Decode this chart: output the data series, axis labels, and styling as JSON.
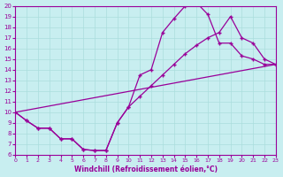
{
  "xlabel": "Windchill (Refroidissement éolien,°C)",
  "bg_color": "#c8eef0",
  "grid_color": "#aadddd",
  "line_color": "#990099",
  "xlim": [
    0,
    23
  ],
  "ylim": [
    6,
    20
  ],
  "xticks": [
    0,
    1,
    2,
    3,
    4,
    5,
    6,
    7,
    8,
    9,
    10,
    11,
    12,
    13,
    14,
    15,
    16,
    17,
    18,
    19,
    20,
    21,
    22,
    23
  ],
  "yticks": [
    6,
    7,
    8,
    9,
    10,
    11,
    12,
    13,
    14,
    15,
    16,
    17,
    18,
    19,
    20
  ],
  "line1_x": [
    0,
    1,
    2,
    3,
    4,
    5,
    6,
    7,
    8,
    9,
    10,
    11,
    12,
    13,
    14,
    15,
    16,
    17,
    18,
    19,
    20,
    21,
    22,
    23
  ],
  "line1_y": [
    10,
    9.2,
    8.5,
    8.5,
    7.5,
    7.5,
    6.5,
    6.4,
    6.4,
    9.0,
    10.5,
    13.5,
    14.0,
    17.5,
    18.8,
    20.0,
    20.3,
    19.2,
    16.5,
    16.5,
    15.3,
    15.0,
    14.5,
    14.5
  ],
  "line2_x": [
    0,
    1,
    2,
    3,
    4,
    5,
    6,
    7,
    8,
    9,
    10,
    11,
    12,
    13,
    14,
    15,
    16,
    17,
    18,
    19,
    20,
    21,
    22,
    23
  ],
  "line2_y": [
    10,
    9.2,
    8.5,
    8.5,
    7.5,
    7.5,
    6.5,
    6.4,
    6.4,
    9.0,
    10.5,
    11.5,
    12.5,
    13.5,
    14.5,
    15.5,
    16.3,
    17.0,
    17.5,
    19.0,
    17.0,
    16.5,
    15.0,
    14.5
  ],
  "line3_x": [
    0,
    23
  ],
  "line3_y": [
    10,
    14.5
  ]
}
